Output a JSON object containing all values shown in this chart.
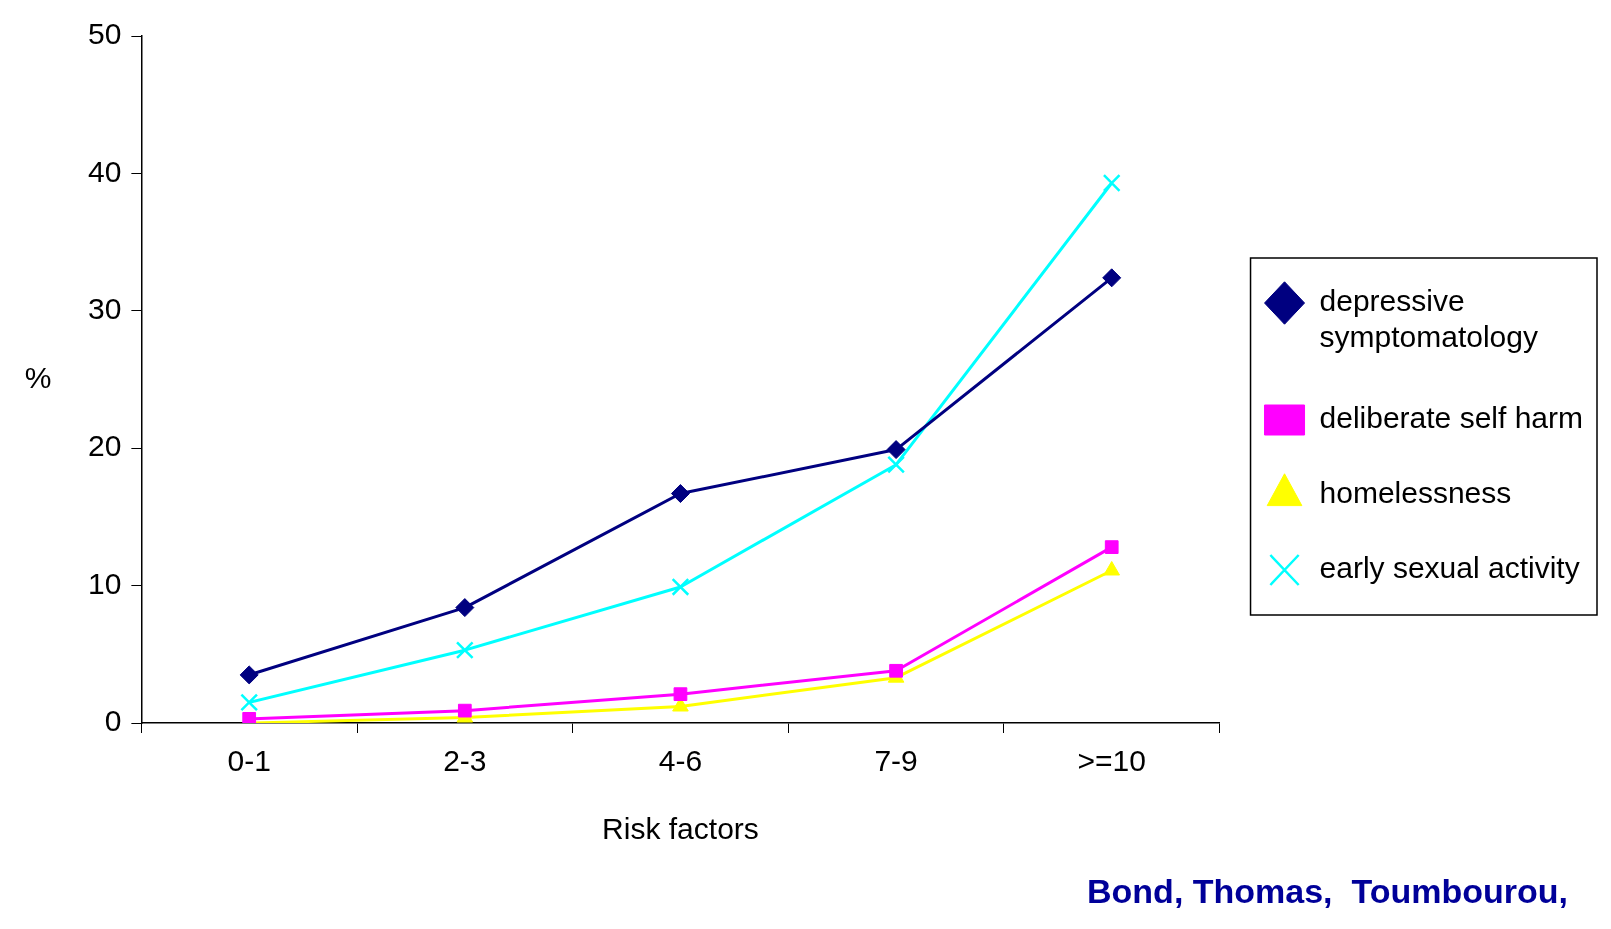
{
  "chart_data": {
    "type": "line",
    "xlabel": "Risk factors",
    "ylabel": "%",
    "categories": [
      "0-1",
      "2-3",
      "4-6",
      "7-9",
      ">=10"
    ],
    "series": [
      {
        "name": "depressive symptomatology",
        "color": "#000080",
        "marker": "diamond",
        "values": [
          3.5,
          8.4,
          16.7,
          19.9,
          32.4
        ]
      },
      {
        "name": "deliberate self harm",
        "color": "#ff00ff",
        "marker": "square",
        "values": [
          0.3,
          0.9,
          2.1,
          3.8,
          12.8
        ]
      },
      {
        "name": "homelessness",
        "color": "#ffff00",
        "marker": "triangle",
        "values": [
          0,
          0.4,
          1.2,
          3.3,
          11.1
        ]
      },
      {
        "name": "early sexual activity",
        "color": "#00ffff",
        "marker": "cross",
        "values": [
          1.5,
          5.3,
          9.9,
          18.8,
          39.3
        ]
      }
    ],
    "ylim": [
      0,
      50
    ],
    "yticks": [
      0,
      10,
      20,
      30,
      40,
      50
    ],
    "grid": false,
    "legend": "right",
    "line_style": "solid",
    "annotations": [
      "Bond, Thomas,  Toumbourou,"
    ]
  }
}
